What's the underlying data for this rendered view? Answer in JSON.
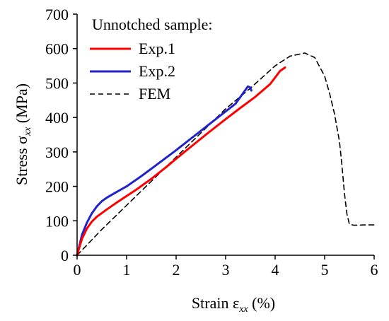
{
  "chart_data": {
    "type": "line",
    "xlabel": {
      "main": "Strain ε",
      "sub": "xx",
      "unit": " (%)"
    },
    "ylabel": {
      "main": "Stress σ",
      "sub": "xx",
      "unit": " (MPa)"
    },
    "xlim": [
      0,
      6
    ],
    "ylim": [
      0,
      700
    ],
    "xticks": [
      0,
      1,
      2,
      3,
      4,
      5,
      6
    ],
    "yticks": [
      0,
      100,
      200,
      300,
      400,
      500,
      600,
      700
    ],
    "grid": false,
    "legend": {
      "title": "Unnotched sample:",
      "placement": "top-left"
    },
    "series": [
      {
        "name": "Exp.1",
        "color": "#ff0000",
        "style": "solid",
        "x": [
          0,
          0.05,
          0.1,
          0.2,
          0.3,
          0.4,
          0.6,
          0.8,
          1.0,
          1.2,
          1.5,
          1.8,
          2.0,
          2.3,
          2.6,
          3.0,
          3.3,
          3.6,
          3.9,
          4.1,
          4.2
        ],
        "y": [
          0,
          25,
          48,
          78,
          98,
          112,
          133,
          153,
          172,
          191,
          222,
          256,
          280,
          315,
          350,
          395,
          428,
          460,
          497,
          535,
          545
        ]
      },
      {
        "name": "Exp.2",
        "color": "#2222cc",
        "style": "solid",
        "x": [
          0,
          0.05,
          0.1,
          0.2,
          0.3,
          0.4,
          0.5,
          0.6,
          0.8,
          1.0,
          1.3,
          1.6,
          2.0,
          2.4,
          2.8,
          3.2,
          3.45,
          3.5,
          3.52
        ],
        "y": [
          0,
          30,
          60,
          95,
          122,
          142,
          157,
          167,
          184,
          200,
          230,
          262,
          305,
          350,
          395,
          440,
          490,
          487,
          478
        ]
      },
      {
        "name": "FEM",
        "color": "#000000",
        "style": "dashed",
        "x": [
          0,
          0.5,
          1.0,
          1.5,
          2.0,
          2.5,
          3.0,
          3.5,
          4.0,
          4.3,
          4.6,
          4.8,
          5.0,
          5.1,
          5.2,
          5.3,
          5.35,
          5.4,
          5.45,
          5.5,
          5.6,
          5.8,
          6.0
        ],
        "y": [
          0,
          75,
          145,
          215,
          285,
          355,
          425,
          485,
          550,
          578,
          587,
          574,
          520,
          470,
          410,
          330,
          260,
          180,
          120,
          90,
          87,
          88,
          88
        ]
      }
    ]
  }
}
